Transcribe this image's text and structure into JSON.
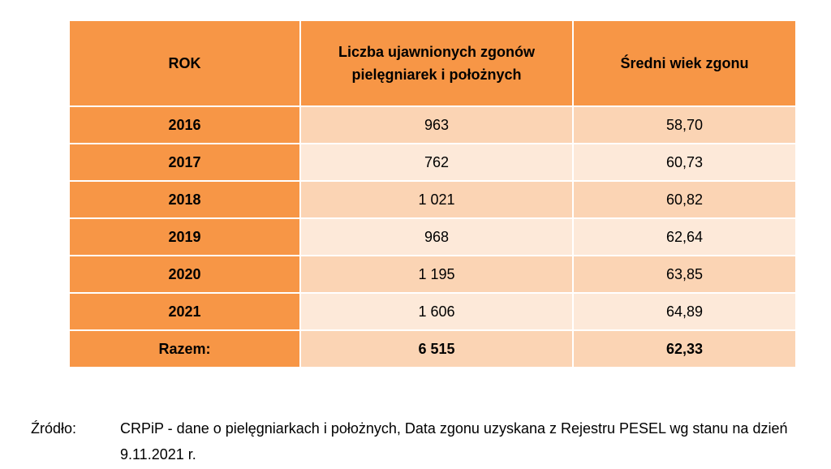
{
  "table": {
    "headers": [
      "ROK",
      "Liczba ujawnionych zgonów pielęgniarek i położnych",
      "Średni wiek zgonu"
    ],
    "rows": [
      {
        "year": "2016",
        "deaths": "963",
        "avg_age": "58,70"
      },
      {
        "year": "2017",
        "deaths": "762",
        "avg_age": "60,73"
      },
      {
        "year": "2018",
        "deaths": "1 021",
        "avg_age": "60,82"
      },
      {
        "year": "2019",
        "deaths": "968",
        "avg_age": "62,64"
      },
      {
        "year": "2020",
        "deaths": "1 195",
        "avg_age": "63,85"
      },
      {
        "year": "2021",
        "deaths": "1 606",
        "avg_age": "64,89"
      }
    ],
    "total": {
      "label": "Razem:",
      "deaths": "6 515",
      "avg_age": "62,33"
    }
  },
  "source": {
    "label": "Źródło:",
    "text": "CRPiP - dane o pielęgniarkach i położnych, Data zgonu uzyskana z Rejestru PESEL wg stanu na dzień 9.11.2021 r."
  },
  "colors": {
    "header_bg": "#f79646",
    "band_dark": "#fbd4b4",
    "band_light": "#fde9d9"
  }
}
